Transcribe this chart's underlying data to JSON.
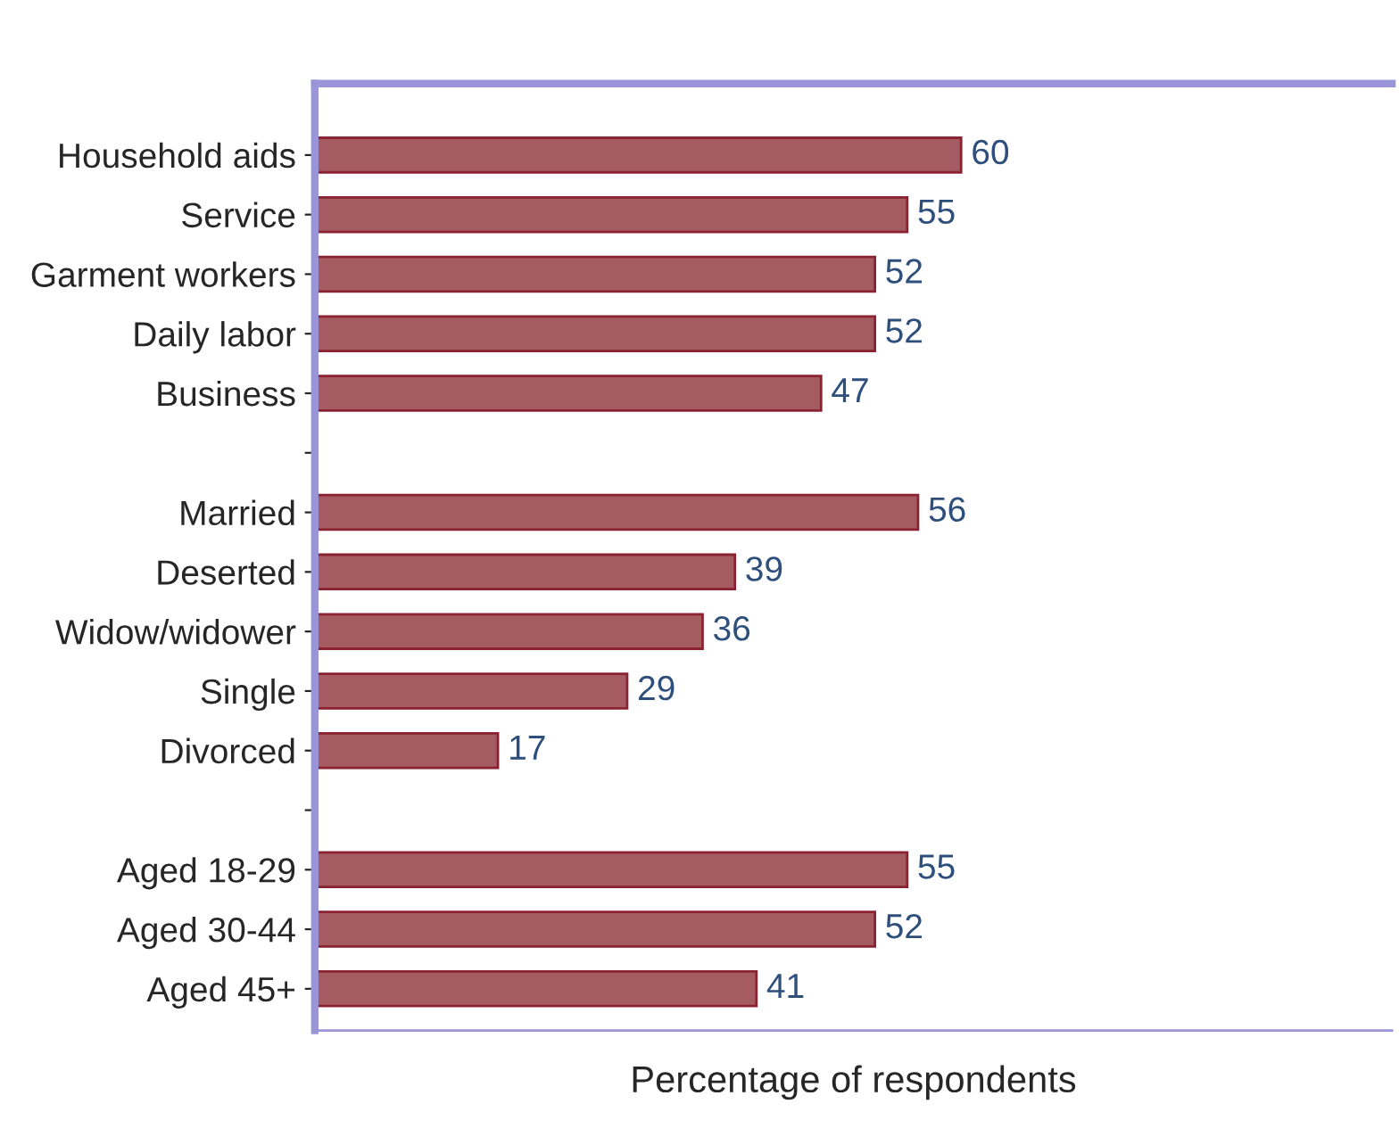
{
  "chart_data": {
    "type": "bar",
    "orientation": "horizontal",
    "xlabel": "Percentage of respondents",
    "categories": [
      "Household aids",
      "Service",
      "Garment workers",
      "Daily labor",
      "Business",
      null,
      "Married",
      "Deserted",
      "Widow/widower",
      "Single",
      "Divorced",
      null,
      "Aged 18-29",
      "Aged 30-44",
      "Aged 45+"
    ],
    "values": [
      60,
      55,
      52,
      52,
      47,
      null,
      56,
      39,
      36,
      29,
      17,
      null,
      55,
      52,
      41
    ],
    "color": "#a45c62",
    "data_labels": true,
    "xlim": [
      0,
      100
    ],
    "tick_labels": "y",
    "grid": false,
    "legend": false
  }
}
